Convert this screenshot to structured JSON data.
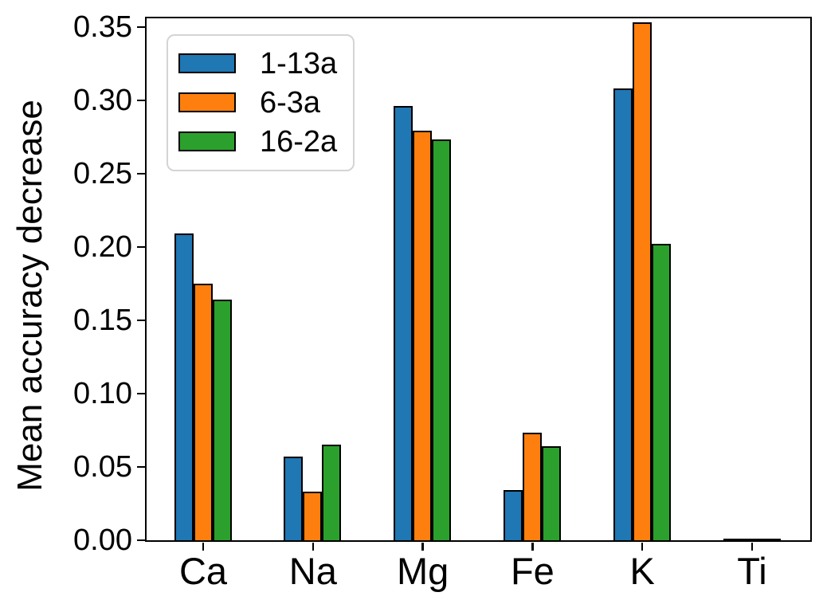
{
  "figure": {
    "background": "#ffffff"
  },
  "chart_data": {
    "type": "bar",
    "title": "",
    "xlabel": "",
    "ylabel": "Mean accuracy decrease",
    "categories": [
      "Ca",
      "Na",
      "Mg",
      "Fe",
      "K",
      "Ti"
    ],
    "series": [
      {
        "name": "1-13a",
        "color": "#1f77b4",
        "values": [
          0.209,
          0.057,
          0.296,
          0.034,
          0.308,
          0.001
        ]
      },
      {
        "name": "6-3a",
        "color": "#ff7f0e",
        "values": [
          0.175,
          0.033,
          0.279,
          0.073,
          0.353,
          0.001
        ]
      },
      {
        "name": "16-2a",
        "color": "#2ca02c",
        "values": [
          0.164,
          0.065,
          0.273,
          0.064,
          0.202,
          0.001
        ]
      }
    ],
    "ylim": [
      0,
      0.356
    ],
    "yticks": [
      0.0,
      0.05,
      0.1,
      0.15,
      0.2,
      0.25,
      0.3,
      0.35
    ],
    "ytick_labels": [
      "0.00",
      "0.05",
      "0.10",
      "0.15",
      "0.20",
      "0.25",
      "0.30",
      "0.35"
    ],
    "bar_edge_color": "#000000",
    "axis_color": "#000000",
    "legend_border_color": "#d4d4d4",
    "legend_position": "upper-left",
    "grid": false
  }
}
